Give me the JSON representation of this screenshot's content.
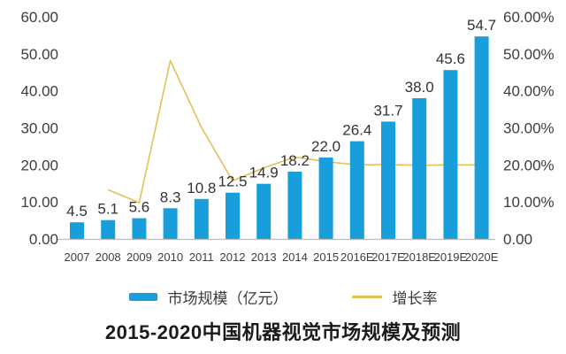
{
  "chart_data": {
    "type": "combo",
    "title": "2015-2020中国机器视觉市场规模及预测",
    "categories": [
      "2007",
      "2008",
      "2009",
      "2010",
      "2011",
      "2012",
      "2013",
      "2014",
      "2015",
      "2016E",
      "2017E",
      "2018E",
      "2019E",
      "2020E"
    ],
    "series": [
      {
        "name": "市场规模（亿元）",
        "type": "bar",
        "color": "#179EDB",
        "values": [
          4.5,
          5.1,
          5.6,
          8.3,
          10.8,
          12.5,
          14.9,
          18.2,
          22.0,
          26.4,
          31.7,
          38.0,
          45.6,
          54.7
        ],
        "labels": [
          "4.5",
          "5.1",
          "5.6",
          "8.3",
          "10.8",
          "12.5",
          "14.9",
          "18.2",
          "22.0",
          "26.4",
          "31.7",
          "38.0",
          "45.6",
          "54.7"
        ]
      },
      {
        "name": "增长率",
        "type": "line",
        "color": "#E3C157",
        "axis": "right",
        "values": [
          null,
          13.3,
          9.8,
          48.2,
          30.1,
          15.7,
          19.2,
          22.1,
          20.9,
          20.0,
          20.1,
          19.9,
          20.0,
          20.0
        ]
      }
    ],
    "left_axis": {
      "min": 0,
      "max": 60,
      "tick_labels": [
        "0.00",
        "10.00",
        "20.00",
        "30.00",
        "40.00",
        "50.00",
        "60.00"
      ]
    },
    "right_axis": {
      "min": 0,
      "max": 60,
      "tick_labels": [
        "0.00",
        "10.00%",
        "20.00%",
        "30.00%",
        "40.00%",
        "50.00%",
        "60.00%"
      ]
    },
    "legend": [
      {
        "label": "市场规模（亿元）",
        "swatch": "bar"
      },
      {
        "label": "增长率",
        "swatch": "line"
      }
    ],
    "grid": false,
    "legend_position": "bottom",
    "colors": {
      "axis_text": "#3d3d3d",
      "bar_label_text": "#333333",
      "baseline": "#bdbdbd",
      "background": "#ffffff"
    }
  }
}
